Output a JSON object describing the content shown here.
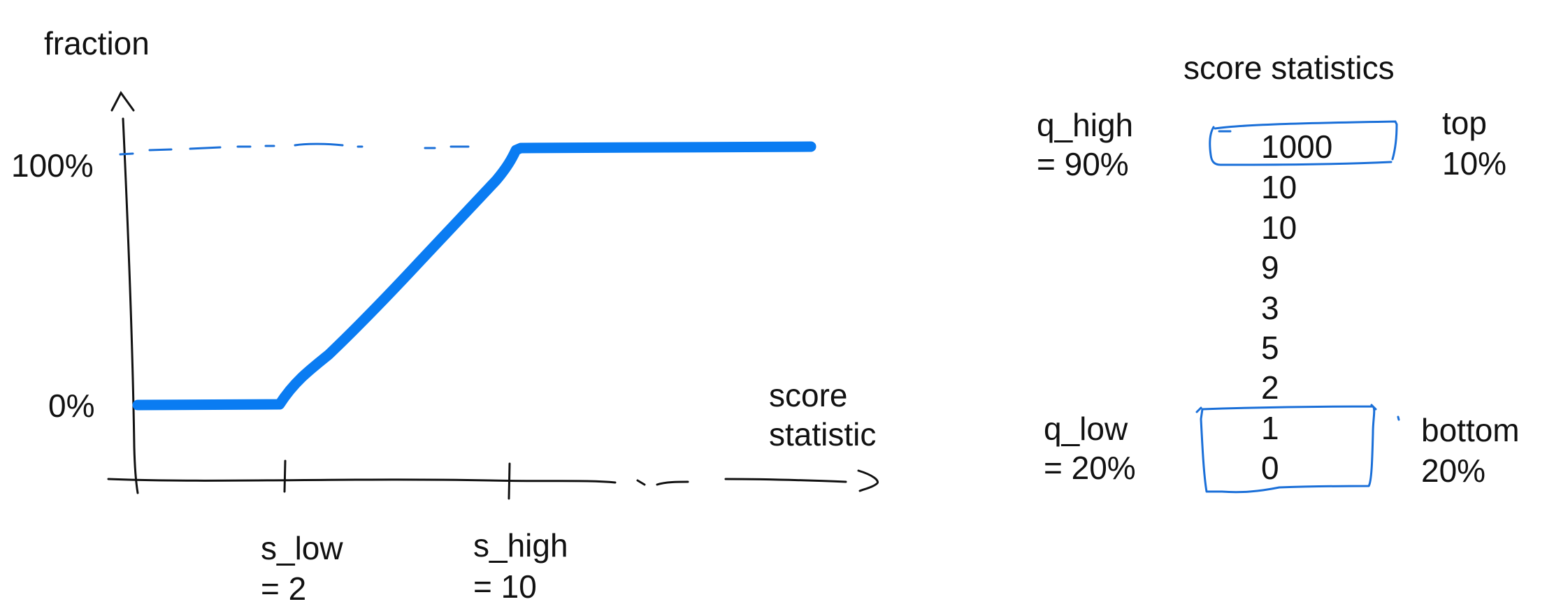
{
  "left_diagram": {
    "y_axis_label": "fraction",
    "y_tick_high": "100%",
    "y_tick_low": "0%",
    "x_axis_label_line1": "score",
    "x_axis_label_line2": "statistic",
    "s_low_line1": "s_low",
    "s_low_line2": "= 2",
    "s_high_line1": "s_high",
    "s_high_line2": "= 10",
    "line_color": "#0a7cf2"
  },
  "right_diagram": {
    "title": "score statistics",
    "q_high_line1": "q_high",
    "q_high_line2": "= 90%",
    "top_line1": "top",
    "top_line2": "10%",
    "q_low_line1": "q_low",
    "q_low_line2": "= 20%",
    "bottom_line1": "bottom",
    "bottom_line2": "20%",
    "values": [
      "1000",
      "10",
      "10",
      "9",
      "3",
      "5",
      "2",
      "1",
      "0"
    ],
    "box_color": "#1a6fd8"
  }
}
